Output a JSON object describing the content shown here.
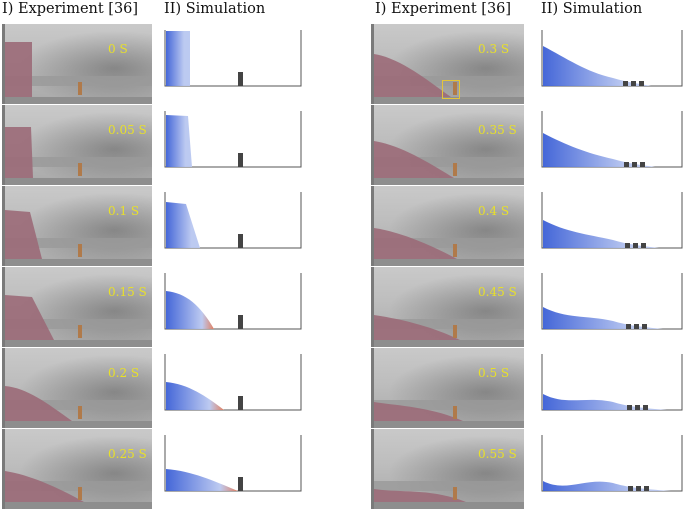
{
  "left": {
    "header_experiment": "I) Experiment [36]",
    "header_simulation": "II) Simulation",
    "times": [
      "0 S",
      "0.05 S",
      "0.1 S",
      "0.15 S",
      "0.2 S",
      "0.25 S"
    ]
  },
  "right": {
    "header_experiment": "I) Experiment [36]",
    "header_simulation": "II) Simulation",
    "times": [
      "0.3 S",
      "0.35 S",
      "0.4 S",
      "0.45 S",
      "0.5 S",
      "0.55 S"
    ]
  },
  "colors": {
    "particles_blue": "#3b5fd6",
    "particles_light": "#b9c7f0",
    "particles_red": "#e07a5a",
    "granular_pink": "#9b6a78",
    "obstacle": "#444444",
    "time_label": "#e8e02a",
    "highlight_box": "#e3c53a"
  }
}
